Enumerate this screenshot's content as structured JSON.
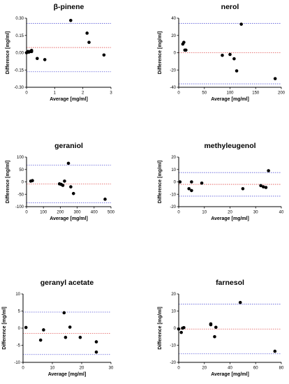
{
  "chart_data": [
    {
      "type": "scatter",
      "title": "β-pinene",
      "xlabel": "Average [mg/ml]",
      "ylabel": "Difference [mg/ml]",
      "xlim": [
        0,
        3
      ],
      "ylim": [
        -0.3,
        0.3
      ],
      "xticks": [
        "0",
        "1",
        "2",
        "3"
      ],
      "yticks": [
        "0.30",
        "0.15",
        "0.00",
        "-0.15",
        "-0.30"
      ],
      "ref_lines": {
        "mean": 0.045,
        "upper_loa": 0.255,
        "lower_loa": -0.165
      },
      "points": [
        {
          "x": 0.0,
          "y": 0.0
        },
        {
          "x": 0.05,
          "y": 0.01
        },
        {
          "x": 0.08,
          "y": 0.005
        },
        {
          "x": 0.12,
          "y": 0.01
        },
        {
          "x": 0.18,
          "y": 0.02
        },
        {
          "x": 0.18,
          "y": 0.01
        },
        {
          "x": 0.38,
          "y": -0.05
        },
        {
          "x": 0.65,
          "y": -0.06
        },
        {
          "x": 1.57,
          "y": 0.28
        },
        {
          "x": 2.15,
          "y": 0.17
        },
        {
          "x": 2.22,
          "y": 0.09
        },
        {
          "x": 2.75,
          "y": -0.02
        }
      ]
    },
    {
      "type": "scatter",
      "title": "nerol",
      "xlabel": "Average [mg/ml]",
      "ylabel": "Difference [mg/ml]",
      "xlim": [
        0,
        200
      ],
      "ylim": [
        -40,
        40
      ],
      "xticks": [
        "0",
        "50",
        "100",
        "150",
        "200"
      ],
      "yticks": [
        "40",
        "20",
        "0",
        "-20",
        "-40"
      ],
      "ref_lines": {
        "mean": 0,
        "upper_loa": 34,
        "lower_loa": -36
      },
      "points": [
        {
          "x": 8,
          "y": 10
        },
        {
          "x": 10,
          "y": 12
        },
        {
          "x": 12,
          "y": 3
        },
        {
          "x": 14,
          "y": 3
        },
        {
          "x": 85,
          "y": -3
        },
        {
          "x": 100,
          "y": -2
        },
        {
          "x": 108,
          "y": -7
        },
        {
          "x": 113,
          "y": -21
        },
        {
          "x": 122,
          "y": 33
        },
        {
          "x": 188,
          "y": -30
        }
      ]
    },
    {
      "type": "scatter",
      "title": "geraniol",
      "xlabel": "Average [mg/ml]",
      "ylabel": "Difference [mg/ml]",
      "xlim": [
        0,
        500
      ],
      "ylim": [
        -100,
        100
      ],
      "xticks": [
        "0",
        "100",
        "200",
        "300",
        "400",
        "500"
      ],
      "yticks": [
        "100",
        "50",
        "0",
        "-50",
        "-100"
      ],
      "ref_lines": {
        "mean": -8,
        "upper_loa": 68,
        "lower_loa": -84
      },
      "points": [
        {
          "x": 25,
          "y": 3
        },
        {
          "x": 35,
          "y": 5
        },
        {
          "x": 195,
          "y": -8
        },
        {
          "x": 205,
          "y": -10
        },
        {
          "x": 215,
          "y": -14
        },
        {
          "x": 225,
          "y": 3
        },
        {
          "x": 248,
          "y": 75
        },
        {
          "x": 262,
          "y": -20
        },
        {
          "x": 278,
          "y": -47
        },
        {
          "x": 465,
          "y": -70
        }
      ]
    },
    {
      "type": "scatter",
      "title": "methyleugenol",
      "xlabel": "Average [mg/ml]",
      "ylabel": "Difference [mg/ml]",
      "xlim": [
        0,
        40
      ],
      "ylim": [
        -20,
        20
      ],
      "xticks": [
        "0",
        "10",
        "20",
        "30",
        "40"
      ],
      "yticks": [
        "20",
        "10",
        "0",
        "-10",
        "-20"
      ],
      "ref_lines": {
        "mean": -2,
        "upper_loa": 7.5,
        "lower_loa": -11.5
      },
      "points": [
        {
          "x": 0.5,
          "y": 0
        },
        {
          "x": 4,
          "y": -5.5
        },
        {
          "x": 5,
          "y": -7
        },
        {
          "x": 5,
          "y": 0
        },
        {
          "x": 9,
          "y": -1
        },
        {
          "x": 25,
          "y": -5.5
        },
        {
          "x": 32,
          "y": -3
        },
        {
          "x": 33,
          "y": -4
        },
        {
          "x": 34,
          "y": -4.5
        },
        {
          "x": 35,
          "y": 9
        }
      ]
    },
    {
      "type": "scatter",
      "title": "geranyl acetate",
      "xlabel": "Average [mg/ml]",
      "ylabel": "Difference [mg/ml]",
      "xlim": [
        0,
        30
      ],
      "ylim": [
        -10,
        10
      ],
      "xticks": [
        "0",
        "10",
        "20",
        "30"
      ],
      "yticks": [
        "10",
        "5",
        "0",
        "-5",
        "-10"
      ],
      "ref_lines": {
        "mean": -1.5,
        "upper_loa": 4.7,
        "lower_loa": -7.7
      },
      "points": [
        {
          "x": 1,
          "y": 0.2
        },
        {
          "x": 6,
          "y": -3.5
        },
        {
          "x": 7,
          "y": -0.5
        },
        {
          "x": 14,
          "y": 4.5
        },
        {
          "x": 14.5,
          "y": -2.7
        },
        {
          "x": 16,
          "y": 0.3
        },
        {
          "x": 19.5,
          "y": -2.7
        },
        {
          "x": 25,
          "y": -4
        },
        {
          "x": 25,
          "y": -7
        }
      ]
    },
    {
      "type": "scatter",
      "title": "farnesol",
      "xlabel": "Average [mg/ml]",
      "ylabel": "Difference [mg/ml]",
      "xlim": [
        0,
        80
      ],
      "ylim": [
        -20,
        20
      ],
      "xticks": [
        "0",
        "20",
        "40",
        "60",
        "80"
      ],
      "yticks": [
        "20",
        "10",
        "0",
        "-10",
        "-20"
      ],
      "ref_lines": {
        "mean": -0.5,
        "upper_loa": 14,
        "lower_loa": -15
      },
      "points": [
        {
          "x": 0,
          "y": -0.5
        },
        {
          "x": 2,
          "y": -2.5
        },
        {
          "x": 3,
          "y": 0
        },
        {
          "x": 4,
          "y": 0.3
        },
        {
          "x": 25,
          "y": 2
        },
        {
          "x": 25,
          "y": 2.5
        },
        {
          "x": 28,
          "y": -5
        },
        {
          "x": 29,
          "y": 0.5
        },
        {
          "x": 48,
          "y": 15
        },
        {
          "x": 75,
          "y": -13.5
        }
      ]
    }
  ],
  "colors": {
    "upper_loa": "#5a5ad8",
    "lower_loa": "#5a5ad8",
    "mean": "#e05050",
    "points": "#000000"
  }
}
